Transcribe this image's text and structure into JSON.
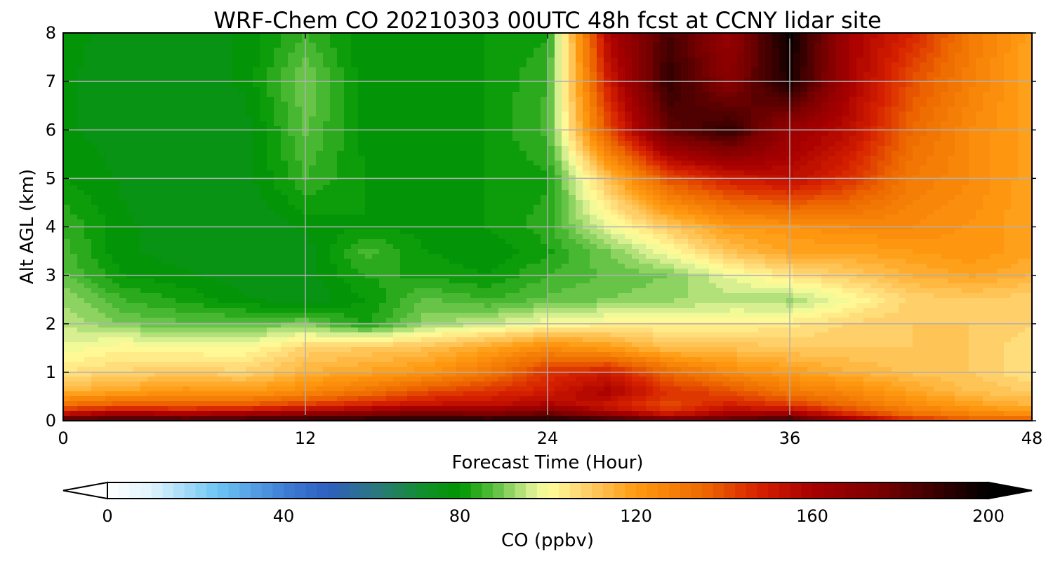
{
  "chart_data": {
    "type": "heatmap",
    "title": "WRF-Chem CO  20210303 00UTC 48h fcst at CCNY lidar site",
    "xlabel": "Forecast Time (Hour)",
    "ylabel": "Alt AGL (km)",
    "xlim": [
      0,
      48
    ],
    "ylim": [
      0,
      8
    ],
    "x_ticks": [
      0,
      12,
      24,
      36,
      48
    ],
    "y_ticks": [
      0,
      1,
      2,
      3,
      4,
      5,
      6,
      7,
      8
    ],
    "grid": true,
    "x_hours": [
      0,
      3,
      6,
      9,
      12,
      15,
      18,
      21,
      24,
      27,
      30,
      33,
      36,
      39,
      42,
      45,
      48
    ],
    "y_km": [
      0,
      0.1,
      0.3,
      0.6,
      1,
      1.5,
      2,
      2.5,
      3,
      3.5,
      4,
      5,
      6,
      7,
      8
    ],
    "z_ppbv": [
      [
        195,
        195,
        195,
        195,
        195,
        195,
        195,
        195,
        195,
        195,
        190,
        190,
        195,
        170,
        150,
        140,
        140
      ],
      [
        160,
        170,
        165,
        170,
        175,
        180,
        185,
        180,
        185,
        170,
        155,
        165,
        170,
        150,
        135,
        130,
        125
      ],
      [
        135,
        140,
        138,
        140,
        145,
        150,
        155,
        155,
        160,
        150,
        140,
        150,
        145,
        135,
        125,
        120,
        115
      ],
      [
        115,
        118,
        122,
        120,
        125,
        132,
        140,
        145,
        150,
        160,
        145,
        140,
        130,
        125,
        118,
        112,
        110
      ],
      [
        105,
        108,
        110,
        108,
        115,
        118,
        122,
        130,
        145,
        150,
        135,
        125,
        120,
        115,
        112,
        110,
        105
      ],
      [
        98,
        102,
        100,
        100,
        108,
        110,
        112,
        118,
        125,
        120,
        112,
        112,
        110,
        110,
        110,
        110,
        105
      ],
      [
        95,
        90,
        88,
        88,
        90,
        82,
        92,
        95,
        100,
        102,
        102,
        102,
        104,
        108,
        110,
        110,
        108
      ],
      [
        92,
        85,
        82,
        78,
        75,
        80,
        88,
        85,
        88,
        90,
        92,
        94,
        92,
        100,
        108,
        110,
        108
      ],
      [
        88,
        80,
        78,
        76,
        76,
        83,
        82,
        80,
        85,
        88,
        90,
        98,
        105,
        110,
        115,
        118,
        115
      ],
      [
        86,
        78,
        76,
        75,
        76,
        86,
        80,
        78,
        82,
        90,
        100,
        112,
        118,
        118,
        120,
        122,
        118
      ],
      [
        85,
        78,
        76,
        75,
        78,
        80,
        79,
        80,
        84,
        98,
        110,
        120,
        122,
        125,
        125,
        122,
        118
      ],
      [
        80,
        77,
        75,
        76,
        85,
        80,
        78,
        80,
        82,
        112,
        140,
        150,
        155,
        145,
        130,
        125,
        118
      ],
      [
        78,
        76,
        76,
        76,
        88,
        79,
        78,
        80,
        86,
        140,
        180,
        190,
        165,
        155,
        135,
        125,
        118
      ],
      [
        78,
        76,
        76,
        78,
        90,
        78,
        79,
        80,
        85,
        150,
        190,
        170,
        195,
        160,
        140,
        128,
        118
      ],
      [
        78,
        77,
        76,
        78,
        85,
        78,
        78,
        80,
        82,
        158,
        185,
        165,
        198,
        160,
        148,
        130,
        118
      ]
    ],
    "colorbar": {
      "label": "CO  (ppbv)",
      "ticks": [
        0,
        40,
        80,
        120,
        160,
        200
      ],
      "min": 0,
      "max": 200,
      "levels": 80,
      "extend": "both",
      "orientation": "horizontal",
      "placement": "bottom",
      "stops": [
        [
          0,
          "#ffffff"
        ],
        [
          10,
          "#dff3fd"
        ],
        [
          25,
          "#6ec5f4"
        ],
        [
          40,
          "#3f7fd6"
        ],
        [
          50,
          "#2f5fc0"
        ],
        [
          62,
          "#2a7a78"
        ],
        [
          72,
          "#10902a"
        ],
        [
          80,
          "#009600"
        ],
        [
          88,
          "#5cc040"
        ],
        [
          96,
          "#d4ee90"
        ],
        [
          100,
          "#ffff9c"
        ],
        [
          108,
          "#ffd470"
        ],
        [
          120,
          "#ff9a10"
        ],
        [
          135,
          "#ee6a00"
        ],
        [
          148,
          "#d62000"
        ],
        [
          160,
          "#a80000"
        ],
        [
          175,
          "#7a0000"
        ],
        [
          190,
          "#300000"
        ],
        [
          200,
          "#000000"
        ]
      ]
    }
  }
}
